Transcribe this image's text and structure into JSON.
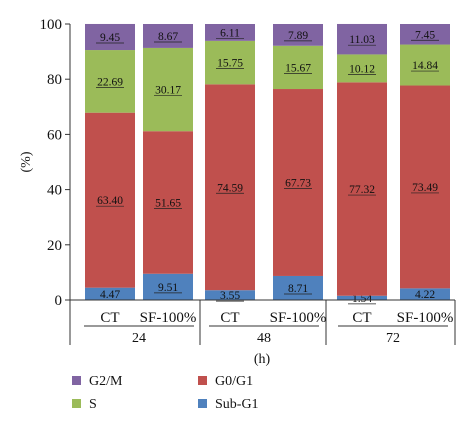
{
  "chart_data": {
    "type": "bar",
    "stacked": true,
    "ylabel": "(%)",
    "xlabel": "(h)",
    "ylim": [
      0,
      100
    ],
    "yticks": [
      0,
      20,
      40,
      60,
      80,
      100
    ],
    "grid": false,
    "legend_position": "bottom",
    "categories": [
      "CT",
      "SF-100%",
      "CT",
      "SF-100%",
      "CT",
      "SF-100%"
    ],
    "groups": [
      {
        "label": "24",
        "categories": [
          "CT",
          "SF-100%"
        ]
      },
      {
        "label": "48",
        "categories": [
          "CT",
          "SF-100%"
        ]
      },
      {
        "label": "72",
        "categories": [
          "CT",
          "SF-100%"
        ]
      }
    ],
    "series": [
      {
        "name": "Sub-G1",
        "color": "#4f81bd",
        "values": [
          4.47,
          9.51,
          3.55,
          8.71,
          1.54,
          4.22
        ],
        "labels": [
          "4.47",
          "9.51",
          "3.55",
          "8.71",
          "1.54",
          "4.22"
        ]
      },
      {
        "name": "G0/G1",
        "color": "#c0504d",
        "values": [
          63.4,
          51.65,
          74.59,
          67.73,
          77.32,
          73.49
        ],
        "labels": [
          "63.40",
          "51.65",
          "74.59",
          "67.73",
          "77.32",
          "73.49"
        ]
      },
      {
        "name": "S",
        "color": "#9bbb59",
        "values": [
          22.69,
          30.17,
          15.75,
          15.67,
          10.12,
          14.84
        ],
        "labels": [
          "22.69",
          "30.17",
          "15.75",
          "15.67",
          "10.12",
          "14.84"
        ]
      },
      {
        "name": "G2/M",
        "color": "#8064a2",
        "values": [
          9.45,
          8.67,
          6.11,
          7.89,
          11.03,
          7.45
        ],
        "labels": [
          "9.45",
          "8.67",
          "6.11",
          "7.89",
          "11.03",
          "7.45"
        ]
      }
    ],
    "legend_order": [
      "G2/M",
      "G0/G1",
      "S",
      "Sub-G1"
    ]
  }
}
